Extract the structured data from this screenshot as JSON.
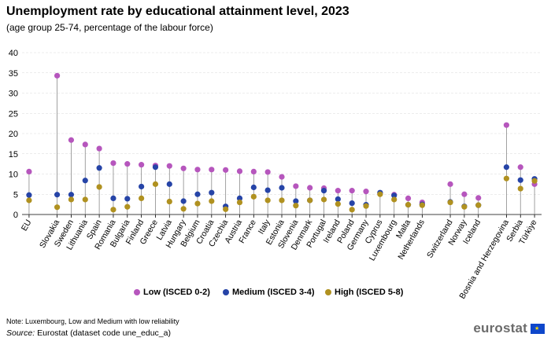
{
  "title": "Unemployment rate by educational attainment level, 2023",
  "subtitle": "(age group 25-74, percentage of the labour force)",
  "note": "Note: Luxembourg, Low and Medium with low reliability",
  "source_prefix": "Source:",
  "source_text": "Eurostat (dataset code une_educ_a)",
  "logo_text": "eurostat",
  "colors": {
    "low": "#b656bd",
    "medium": "#2644a7",
    "high": "#b09120",
    "stem": "#8a8a8a",
    "grid": "#d9d9d9"
  },
  "chart_data": {
    "type": "scatter",
    "title": "Unemployment rate by educational attainment level, 2023",
    "subtitle": "(age group 25-74, percentage of the labour force)",
    "ylim": [
      0,
      40
    ],
    "yticks": [
      0,
      5,
      10,
      15,
      20,
      25,
      30,
      35,
      40
    ],
    "grid": true,
    "legend_position": "bottom",
    "categories": [
      "EU",
      "",
      "Slovakia",
      "Sweden",
      "Lithuania",
      "Spain",
      "Romania",
      "Bulgaria",
      "Finland",
      "Greece",
      "Latvia",
      "Hungary",
      "Belgium",
      "Croatia",
      "Czechia",
      "Austria",
      "France",
      "Italy",
      "Estonia",
      "Slovenia",
      "Denmark",
      "Portugal",
      "Ireland",
      "Poland",
      "Germany",
      "Cyprus",
      "Luxembourg",
      "Malta",
      "Netherlands",
      "",
      "Switzerland",
      "Norway",
      "Iceland",
      "",
      "Bosnia and Herzegovina",
      "Serbia",
      "Türkiye"
    ],
    "series": [
      {
        "name": "Low (ISCED 0-2)",
        "key": "low",
        "values": [
          10.6,
          null,
          34.3,
          18.4,
          17.3,
          16.3,
          12.7,
          12.5,
          12.3,
          12.1,
          12.0,
          11.4,
          11.1,
          11.1,
          11.0,
          10.7,
          10.6,
          10.5,
          9.3,
          7.0,
          6.6,
          6.5,
          5.9,
          5.9,
          5.7,
          5.1,
          4.9,
          4.0,
          3.0,
          null,
          7.5,
          5.0,
          4.1,
          null,
          22.1,
          11.7,
          7.5
        ]
      },
      {
        "name": "Medium (ISCED 3-4)",
        "key": "medium",
        "values": [
          4.8,
          null,
          4.9,
          4.9,
          8.4,
          11.5,
          4.0,
          3.9,
          6.9,
          11.7,
          7.5,
          3.3,
          5.0,
          5.4,
          2.0,
          4.0,
          6.7,
          6.0,
          6.6,
          3.3,
          3.5,
          5.9,
          3.8,
          2.8,
          2.4,
          5.4,
          4.7,
          2.4,
          2.5,
          null,
          3.1,
          2.0,
          2.3,
          null,
          11.7,
          8.5,
          8.8
        ]
      },
      {
        "name": "High (ISCED 5-8)",
        "key": "high",
        "values": [
          3.5,
          null,
          1.8,
          3.7,
          3.7,
          6.8,
          1.2,
          1.9,
          4.0,
          7.5,
          3.2,
          1.4,
          2.7,
          3.3,
          1.3,
          3.0,
          4.4,
          3.5,
          3.5,
          2.2,
          3.5,
          3.7,
          2.6,
          1.2,
          2.1,
          5.0,
          3.7,
          2.4,
          2.3,
          null,
          3.0,
          1.9,
          2.3,
          null,
          8.9,
          6.4,
          8.3
        ]
      }
    ]
  }
}
